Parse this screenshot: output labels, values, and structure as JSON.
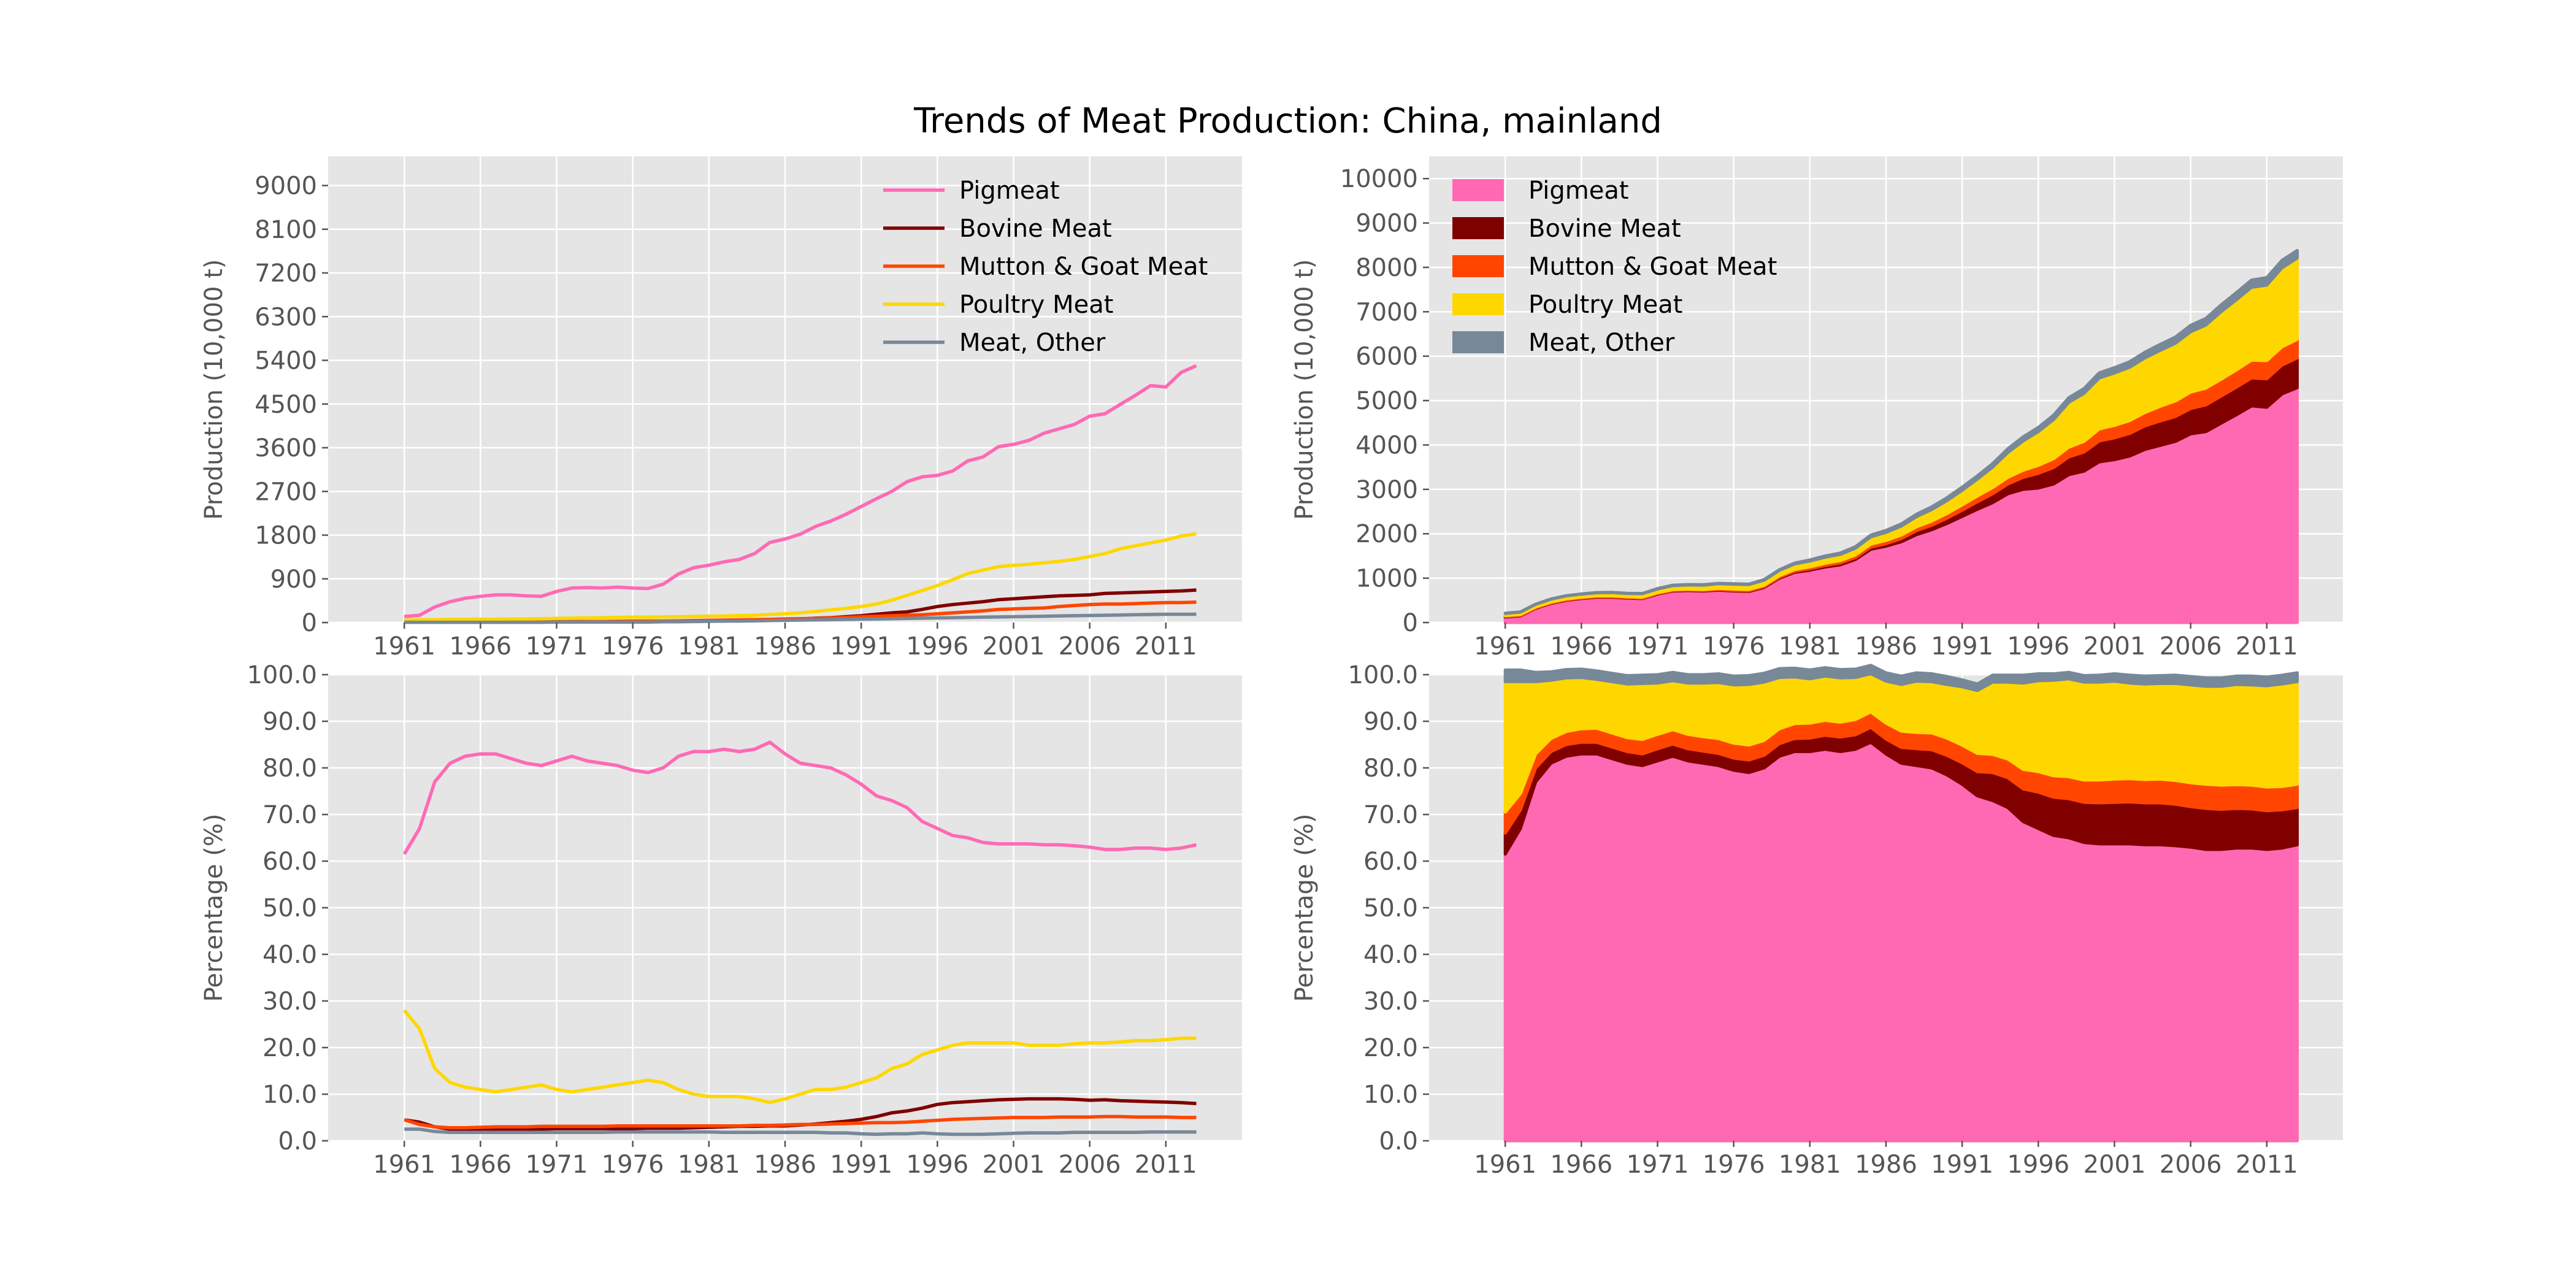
{
  "title": "Trends of Meat Production: China, mainland",
  "colors": {
    "Pigmeat": "#ff69b4",
    "Bovine Meat": "#800000",
    "Mutton & Goat Meat": "#ff4500",
    "Poultry Meat": "#ffd700",
    "Meat, Other": "#778899"
  },
  "chart_data": [
    {
      "type": "line",
      "position": "top-left",
      "ylabel": "Production (10,000 t)",
      "xlim": [
        1956,
        2016
      ],
      "ylim": [
        0,
        9600
      ],
      "xticks": [
        1961,
        1966,
        1971,
        1976,
        1981,
        1986,
        1991,
        1996,
        2001,
        2006,
        2011
      ],
      "yticks": [
        0,
        900,
        1800,
        2700,
        3600,
        4500,
        5400,
        6300,
        7200,
        8100,
        9000
      ],
      "ytick_labels": [
        "0",
        "900",
        "1800",
        "2700",
        "3600",
        "4500",
        "5400",
        "6300",
        "7200",
        "8100",
        "9000"
      ],
      "grid": true,
      "legend": "top-right",
      "series_ref": "production"
    },
    {
      "type": "area",
      "position": "top-right",
      "stacked": true,
      "ylabel": "Production (10,000 t)",
      "xlim": [
        1956,
        2016
      ],
      "ylim": [
        0,
        10500
      ],
      "xticks": [
        1961,
        1966,
        1971,
        1976,
        1981,
        1986,
        1991,
        1996,
        2001,
        2006,
        2011
      ],
      "yticks": [
        0,
        1000,
        2000,
        3000,
        4000,
        5000,
        6000,
        7000,
        8000,
        9000,
        10000
      ],
      "ytick_labels": [
        "0",
        "1000",
        "2000",
        "3000",
        "4000",
        "5000",
        "6000",
        "7000",
        "8000",
        "9000",
        "10000"
      ],
      "grid": true,
      "legend": "top-left",
      "series_ref": "production"
    },
    {
      "type": "line",
      "position": "bottom-left",
      "ylabel": "Percentage (%)",
      "xlim": [
        1956,
        2016
      ],
      "ylim": [
        0,
        100
      ],
      "xticks": [
        1961,
        1966,
        1971,
        1976,
        1981,
        1986,
        1991,
        1996,
        2001,
        2006,
        2011
      ],
      "yticks": [
        0,
        10,
        20,
        30,
        40,
        50,
        60,
        70,
        80,
        90,
        100
      ],
      "ytick_labels": [
        "0.0",
        "10.0",
        "20.0",
        "30.0",
        "40.0",
        "50.0",
        "60.0",
        "70.0",
        "80.0",
        "90.0",
        "100.0"
      ],
      "grid": true,
      "series_ref": "percentage"
    },
    {
      "type": "area",
      "position": "bottom-right",
      "stacked": true,
      "ylabel": "Percentage (%)",
      "xlim": [
        1956,
        2016
      ],
      "ylim": [
        0,
        100
      ],
      "xticks": [
        1961,
        1966,
        1971,
        1976,
        1981,
        1986,
        1991,
        1996,
        2001,
        2006,
        2011
      ],
      "yticks": [
        0,
        10,
        20,
        30,
        40,
        50,
        60,
        70,
        80,
        90,
        100
      ],
      "ytick_labels": [
        "0.0",
        "10.0",
        "20.0",
        "30.0",
        "40.0",
        "50.0",
        "60.0",
        "70.0",
        "80.0",
        "90.0",
        "100.0"
      ],
      "grid": true,
      "series_ref": "percentage"
    }
  ],
  "series": {
    "years": [
      1961,
      1962,
      1963,
      1964,
      1965,
      1966,
      1967,
      1968,
      1969,
      1970,
      1971,
      1972,
      1973,
      1974,
      1975,
      1976,
      1977,
      1978,
      1979,
      1980,
      1981,
      1982,
      1983,
      1984,
      1985,
      1986,
      1987,
      1988,
      1989,
      1990,
      1991,
      1992,
      1993,
      1994,
      1995,
      1996,
      1997,
      1998,
      1999,
      2000,
      2001,
      2002,
      2003,
      2004,
      2005,
      2006,
      2007,
      2008,
      2009,
      2010,
      2011,
      2012,
      2013
    ],
    "production": [
      {
        "name": "Pigmeat",
        "values": [
          125,
          150,
          320,
          430,
          500,
          540,
          570,
          570,
          550,
          540,
          640,
          710,
          720,
          710,
          730,
          710,
          700,
          790,
          1000,
          1130,
          1180,
          1250,
          1300,
          1420,
          1650,
          1720,
          1820,
          1980,
          2090,
          2230,
          2390,
          2550,
          2700,
          2900,
          3000,
          3030,
          3120,
          3330,
          3410,
          3620,
          3670,
          3750,
          3900,
          3990,
          4080,
          4250,
          4300,
          4490,
          4680,
          4880,
          4850,
          5150,
          5290
        ]
      },
      {
        "name": "Bovine Meat",
        "values": [
          10,
          10,
          10,
          10,
          10,
          10,
          10,
          10,
          10,
          10,
          11,
          11,
          12,
          12,
          13,
          14,
          15,
          18,
          20,
          25,
          30,
          35,
          40,
          45,
          50,
          55,
          70,
          90,
          100,
          120,
          140,
          170,
          200,
          220,
          270,
          330,
          370,
          400,
          430,
          470,
          490,
          510,
          530,
          550,
          560,
          570,
          600,
          610,
          620,
          630,
          640,
          650,
          670
        ]
      },
      {
        "name": "Mutton & Goat Meat",
        "values": [
          20,
          20,
          20,
          20,
          20,
          20,
          20,
          20,
          20,
          20,
          20,
          20,
          20,
          20,
          25,
          30,
          30,
          30,
          35,
          40,
          45,
          50,
          55,
          60,
          65,
          75,
          80,
          85,
          95,
          105,
          120,
          130,
          140,
          150,
          160,
          180,
          200,
          220,
          240,
          270,
          280,
          290,
          300,
          330,
          350,
          370,
          380,
          380,
          390,
          400,
          410,
          410,
          420
        ]
      },
      {
        "name": "Poultry Meat",
        "values": [
          50,
          55,
          60,
          65,
          70,
          70,
          70,
          75,
          75,
          80,
          85,
          90,
          95,
          100,
          105,
          110,
          110,
          115,
          120,
          125,
          130,
          135,
          140,
          150,
          165,
          180,
          200,
          230,
          260,
          290,
          330,
          380,
          460,
          560,
          660,
          760,
          880,
          1010,
          1080,
          1150,
          1180,
          1200,
          1230,
          1260,
          1300,
          1360,
          1420,
          1520,
          1580,
          1640,
          1700,
          1780,
          1830
        ]
      },
      {
        "name": "Meat, Other",
        "values": [
          5,
          5,
          5,
          5,
          5,
          5,
          5,
          5,
          5,
          5,
          10,
          10,
          10,
          10,
          10,
          10,
          10,
          15,
          15,
          20,
          25,
          30,
          30,
          35,
          40,
          45,
          50,
          55,
          60,
          65,
          70,
          75,
          80,
          85,
          90,
          95,
          100,
          105,
          110,
          115,
          120,
          125,
          130,
          135,
          140,
          145,
          150,
          155,
          160,
          165,
          170,
          170,
          170
        ]
      }
    ],
    "percentage": [
      {
        "name": "Pigmeat",
        "values": [
          61.5,
          67,
          77,
          81,
          82.5,
          83,
          83,
          82,
          81,
          80.5,
          81.5,
          82.5,
          81.5,
          81,
          80.5,
          79.5,
          79,
          80,
          82.5,
          83.5,
          83.5,
          84,
          83.5,
          84,
          85.5,
          83,
          81,
          80.5,
          80,
          78.5,
          76.5,
          74,
          73,
          71.5,
          68.5,
          67,
          65.5,
          65,
          64,
          63.7,
          63.7,
          63.7,
          63.5,
          63.5,
          63.3,
          63,
          62.5,
          62.5,
          62.8,
          62.8,
          62.5,
          62.8,
          63.5
        ]
      },
      {
        "name": "Bovine Meat",
        "values": [
          4.5,
          4,
          3,
          2.5,
          2.5,
          2.5,
          2.5,
          2.5,
          2.5,
          2.5,
          2.6,
          2.6,
          2.6,
          2.6,
          2.6,
          2.6,
          2.7,
          2.7,
          2.7,
          2.8,
          2.9,
          3.0,
          3.1,
          3.1,
          3.2,
          3.2,
          3.4,
          3.6,
          3.9,
          4.2,
          4.6,
          5.2,
          6,
          6.4,
          7,
          7.8,
          8.2,
          8.4,
          8.6,
          8.8,
          8.9,
          9,
          9,
          9,
          8.9,
          8.7,
          8.8,
          8.6,
          8.5,
          8.4,
          8.3,
          8.2,
          8
        ]
      },
      {
        "name": "Mutton & Goat Meat",
        "values": [
          4.5,
          3.5,
          3,
          2.8,
          2.8,
          2.9,
          3,
          3,
          3,
          3.1,
          3.1,
          3.1,
          3.1,
          3.1,
          3.2,
          3.2,
          3.2,
          3.2,
          3.2,
          3.2,
          3.2,
          3.2,
          3.2,
          3.3,
          3.3,
          3.4,
          3.5,
          3.5,
          3.6,
          3.7,
          3.8,
          3.9,
          3.9,
          4,
          4.2,
          4.4,
          4.6,
          4.7,
          4.8,
          4.9,
          5,
          5,
          5,
          5.1,
          5.1,
          5.1,
          5.2,
          5.2,
          5.1,
          5.1,
          5.1,
          5,
          5
        ]
      },
      {
        "name": "Poultry Meat",
        "values": [
          28,
          24,
          15.5,
          12.5,
          11.5,
          11,
          10.5,
          11,
          11.5,
          12,
          11,
          10.5,
          11,
          11.5,
          12,
          12.5,
          13,
          12.5,
          11,
          10,
          9.5,
          9.5,
          9.5,
          9,
          8.2,
          9,
          10,
          11,
          11,
          11.5,
          12.5,
          13.5,
          15.5,
          16.5,
          18.5,
          19.5,
          20.5,
          21,
          21,
          21,
          21,
          20.5,
          20.5,
          20.5,
          20.8,
          21,
          21,
          21.2,
          21.5,
          21.5,
          21.7,
          22,
          22
        ]
      },
      {
        "name": "Meat, Other",
        "values": [
          2.5,
          2.5,
          2,
          1.8,
          1.8,
          1.8,
          1.8,
          1.8,
          1.8,
          1.8,
          1.8,
          1.8,
          1.8,
          1.8,
          1.9,
          1.9,
          1.9,
          1.9,
          1.9,
          1.9,
          1.9,
          1.8,
          1.8,
          1.8,
          1.8,
          1.8,
          1.8,
          1.8,
          1.7,
          1.7,
          1.5,
          1.4,
          1.5,
          1.5,
          1.7,
          1.5,
          1.4,
          1.4,
          1.4,
          1.5,
          1.6,
          1.7,
          1.7,
          1.7,
          1.8,
          1.8,
          1.8,
          1.8,
          1.8,
          1.9,
          1.9,
          1.9,
          1.9
        ]
      }
    ]
  }
}
